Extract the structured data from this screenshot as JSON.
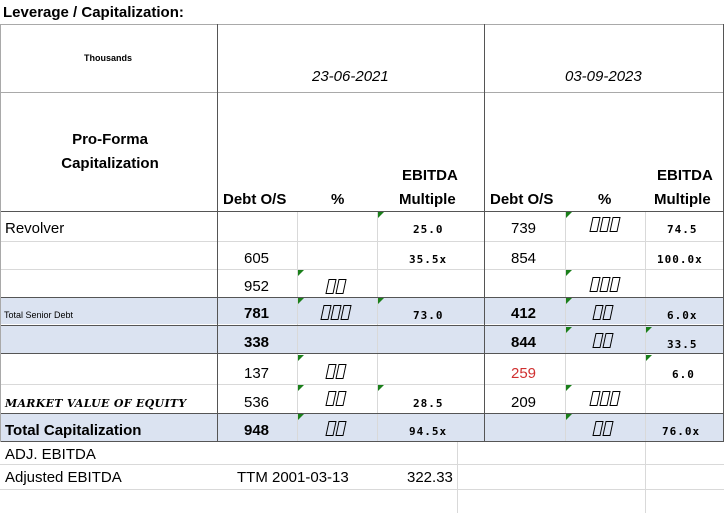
{
  "sheet": {
    "title": "Leverage / Capitalization:",
    "units": "Thousands",
    "dates": [
      "23-06-2021",
      "03-09-2023"
    ],
    "section_title_line1": "Pro-Forma",
    "section_title_line2": "Capitalization",
    "col_headers": {
      "debt": "Debt O/S",
      "pct": "%",
      "ebitda1": "EBITDA",
      "ebitda2": "Multiple"
    },
    "rows": [
      {
        "label": "Revolver",
        "d1": "",
        "e1": "25.0",
        "d2": "739",
        "e2": "74.5"
      },
      {
        "label": "",
        "d1": "605",
        "e1": "35.5x",
        "d2": "854",
        "e2": "100.0x"
      },
      {
        "label": "",
        "d1": "952",
        "e1": "",
        "d2": "",
        "e2": ""
      },
      {
        "label": "Total Senior Debt",
        "d1": "781",
        "e1": "73.0",
        "d2": "412",
        "e2": "6.0x"
      },
      {
        "label": "",
        "d1": "338",
        "e1": "",
        "d2": "844",
        "e2": "33.5"
      },
      {
        "label": "",
        "d1": "137",
        "e1": "",
        "d2": "259",
        "e2": "6.0"
      },
      {
        "label": "MARKET VALUE OF EQUITY",
        "d1": "536",
        "e1": "28.5",
        "d2": "209",
        "e2": ""
      },
      {
        "label": "Total Capitalization",
        "d1": "948",
        "e1": "94.5x",
        "d2": "",
        "e2": "76.0x"
      },
      {
        "label": "ADJ. EBITDA"
      },
      {
        "label": "Adjusted EBITDA",
        "ttm": "TTM 2001-03-13",
        "value": "322.33"
      }
    ]
  },
  "colors": {
    "band": "#dbe3f1",
    "gridline": "#a9a9a9",
    "negative_red": "#d03030",
    "comment_marker": "#1a7f1a"
  }
}
